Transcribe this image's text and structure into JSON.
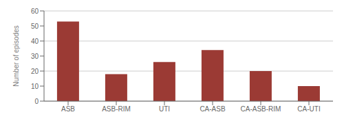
{
  "chart_data": {
    "type": "bar",
    "categories": [
      "ASB",
      "ASB-RIM",
      "UTI",
      "CA-ASB",
      "CA-ASB-RIM",
      "CA-UTI"
    ],
    "values": [
      53,
      18,
      26,
      34,
      20,
      10
    ],
    "color": "#9B3A34",
    "ylabel": "Number of episodes",
    "ylim": [
      0,
      60
    ],
    "yticks": [
      0,
      10,
      20,
      30,
      40,
      50,
      60
    ],
    "grid": true
  }
}
